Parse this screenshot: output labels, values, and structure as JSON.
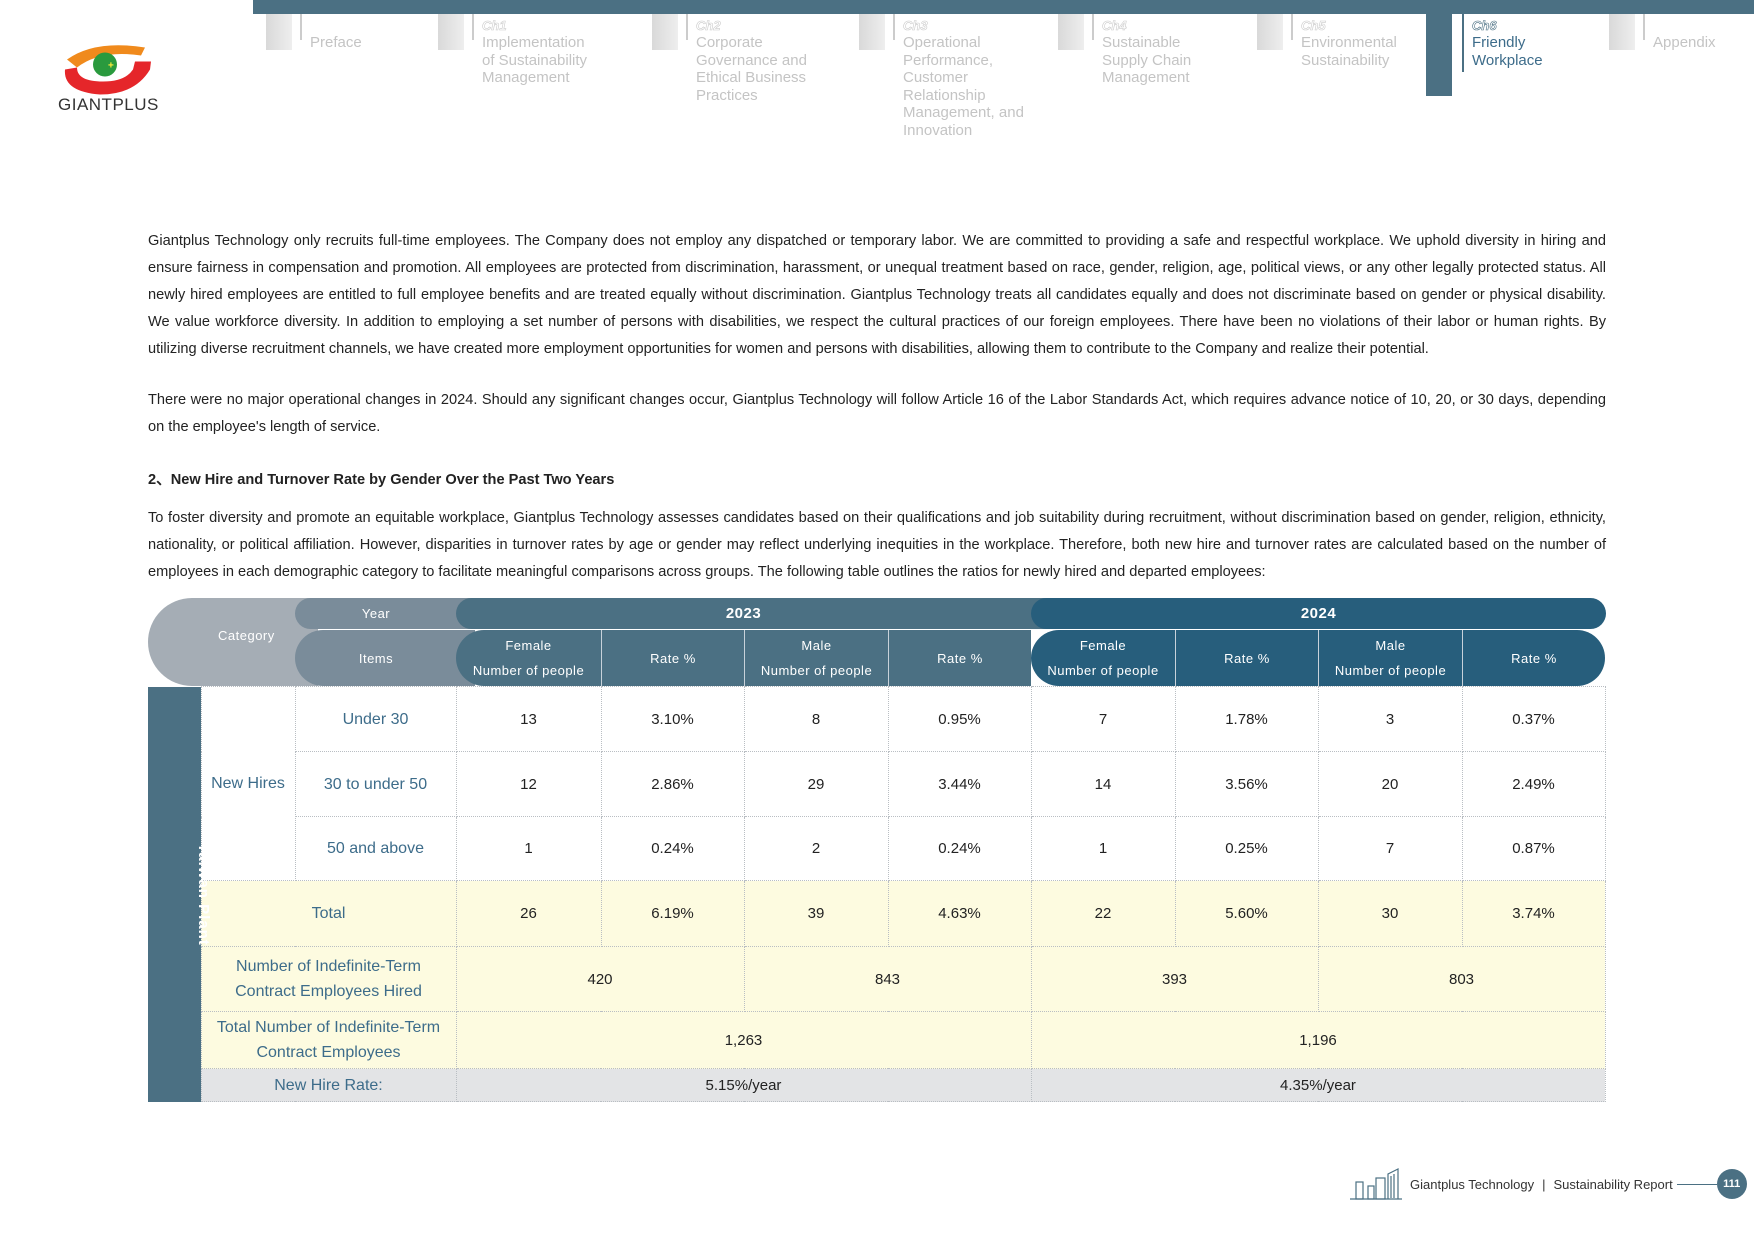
{
  "brand": {
    "name": "GIANTPLUS",
    "colors": {
      "primary": "#4b7083",
      "year2024": "#275e7c",
      "highlight": "#fdfbe0"
    }
  },
  "nav": [
    {
      "chapter": "",
      "title": "Preface"
    },
    {
      "chapter": "Ch1",
      "title": "Implementation\nof Sustainability\nManagement"
    },
    {
      "chapter": "Ch2",
      "title": "Corporate\nGovernance and\nEthical Business\nPractices"
    },
    {
      "chapter": "Ch3",
      "title": "Operational\nPerformance,\nCustomer\nRelationship\nManagement, and\nInnovation"
    },
    {
      "chapter": "Ch4",
      "title": "Sustainable\nSupply Chain\nManagement"
    },
    {
      "chapter": "Ch5",
      "title": "Environmental\nSustainability"
    },
    {
      "chapter": "Ch6",
      "title": "Friendly\nWorkplace",
      "active": true
    },
    {
      "chapter": "",
      "title": "Appendix"
    }
  ],
  "body": {
    "p1": "Giantplus Technology only recruits full-time employees. The Company does not employ any dispatched or temporary labor. We are committed to providing a safe and respectful workplace. We uphold diversity in hiring and ensure fairness in compensation and promotion. All employees are protected from discrimination, harassment, or unequal treatment based on race, gender, religion, age, political views, or any other legally protected status. All newly hired employees are entitled to full employee benefits and are treated equally without discrimination. Giantplus Technology treats all candidates equally and does not discriminate based on gender or physical disability. We value workforce diversity. In addition to employing a set number of persons with disabilities, we respect the cultural practices of our foreign employees. There have been no violations of their labor or human rights. By utilizing diverse recruitment channels, we have created more employment opportunities for women and persons with disabilities, allowing them to contribute to the Company and realize their potential.",
    "p2": "There were no major operational changes in 2024. Should any significant changes occur, Giantplus Technology will follow Article 16 of the Labor Standards Act, which requires advance notice of 10, 20, or 30 days, depending on the employee's length of service.",
    "heading": "2、New Hire and Turnover Rate by Gender Over the Past Two Years",
    "p3": "To foster diversity and promote an equitable workplace, Giantplus Technology assesses candidates based on their qualifications and job suitability during recruitment, without discrimination based on gender, religion, ethnicity, nationality, or political affiliation. However, disparities in turnover rates by age or gender may reflect underlying inequities in the workplace. Therefore, both new hire and turnover rates are calculated based on the number of employees in each demographic category to facilitate meaningful comparisons across groups. The following table outlines the ratios for newly hired and departed employees:"
  },
  "table": {
    "header": {
      "category": "Category",
      "year": "Year",
      "items": "Items",
      "y2023": "2023",
      "y2024": "2024",
      "female1": "Female",
      "female2": "Number of people",
      "male1": "Male",
      "male2": "Number of people",
      "rate": "Rate %"
    },
    "side": "Taiwan Plant",
    "group": "New Hires",
    "rows": [
      {
        "label": "Under 30",
        "v": [
          "13",
          "3.10%",
          "8",
          "0.95%",
          "7",
          "1.78%",
          "3",
          "0.37%"
        ]
      },
      {
        "label": "30 to under 50",
        "v": [
          "12",
          "2.86%",
          "29",
          "3.44%",
          "14",
          "3.56%",
          "20",
          "2.49%"
        ]
      },
      {
        "label": "50 and above",
        "v": [
          "1",
          "0.24%",
          "2",
          "0.24%",
          "1",
          "0.25%",
          "7",
          "0.87%"
        ]
      }
    ],
    "total": {
      "label": "Total",
      "v": [
        "26",
        "6.19%",
        "39",
        "4.63%",
        "22",
        "5.60%",
        "30",
        "3.74%"
      ]
    },
    "hired": {
      "label": "Number of Indefinite-Term Contract Employees Hired",
      "v": [
        "420",
        "843",
        "393",
        "803"
      ]
    },
    "totalEmp": {
      "label": "Total Number of Indefinite-Term Contract Employees",
      "v": [
        "1,263",
        "1,196"
      ]
    },
    "rate": {
      "label": "New Hire Rate:",
      "v": [
        "5.15%/year",
        "4.35%/year"
      ]
    }
  },
  "footer": {
    "company": "Giantplus Technology",
    "separator": "|",
    "report": "Sustainability Report",
    "page": "111"
  }
}
